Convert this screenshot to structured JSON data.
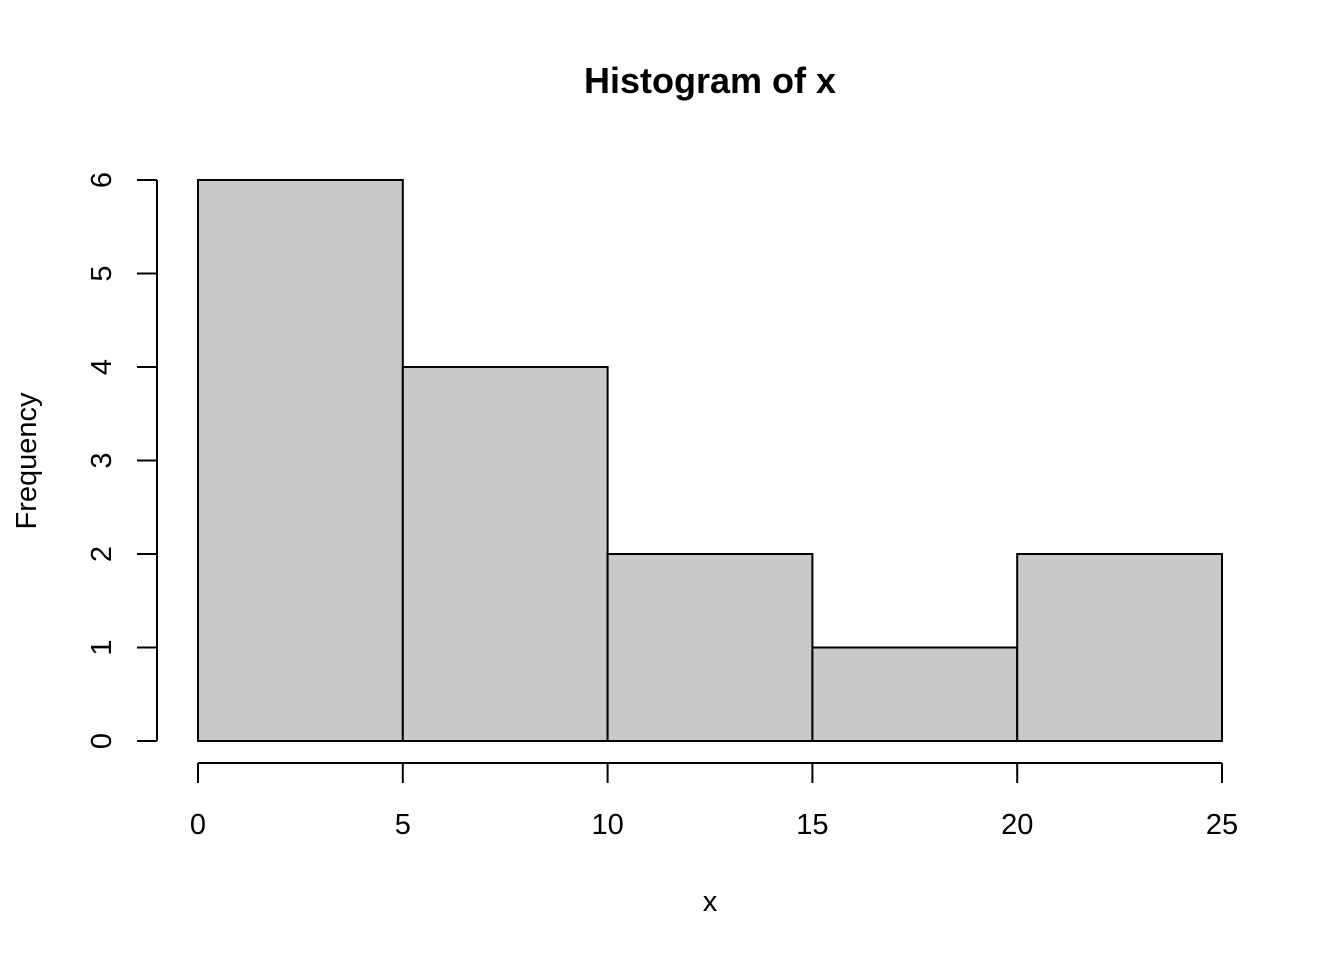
{
  "chart_data": {
    "type": "bar",
    "title": "Histogram of x",
    "xlabel": "x",
    "ylabel": "Frequency",
    "bins": [
      {
        "start": 0,
        "end": 5,
        "count": 6
      },
      {
        "start": 5,
        "end": 10,
        "count": 4
      },
      {
        "start": 10,
        "end": 15,
        "count": 2
      },
      {
        "start": 15,
        "end": 20,
        "count": 1
      },
      {
        "start": 20,
        "end": 25,
        "count": 2
      }
    ],
    "xlim": [
      0,
      25
    ],
    "ylim": [
      0,
      6
    ],
    "x_ticks": [
      0,
      5,
      10,
      15,
      20,
      25
    ],
    "y_ticks": [
      0,
      1,
      2,
      3,
      4,
      5,
      6
    ],
    "grid": false,
    "legend": "none",
    "colors": {
      "bar_fill": "#c9c9c9",
      "bar_stroke": "#000000",
      "axis": "#000000",
      "background": "#ffffff"
    }
  }
}
